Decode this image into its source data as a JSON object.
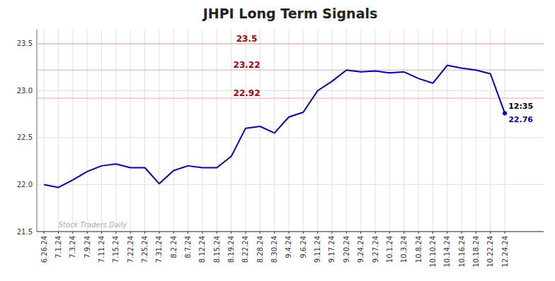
{
  "chart_data": {
    "type": "line",
    "title": "JHPI Long Term Signals",
    "categories": [
      "6.26.24",
      "7.1.24",
      "7.3.24",
      "7.9.24",
      "7.11.24",
      "7.15.24",
      "7.22.24",
      "7.25.24",
      "7.31.24",
      "8.2.24",
      "8.7.24",
      "8.12.24",
      "8.15.24",
      "8.19.24",
      "8.22.24",
      "8.28.24",
      "8.30.24",
      "9.4.24",
      "9.6.24",
      "9.11.24",
      "9.17.24",
      "9.20.24",
      "9.24.24",
      "9.27.24",
      "10.1.24",
      "10.3.24",
      "10.8.24",
      "10.10.24",
      "10.14.24",
      "10.16.24",
      "10.18.24",
      "10.22.24",
      "12.24.24"
    ],
    "values": [
      22.0,
      21.97,
      22.05,
      22.14,
      22.2,
      22.22,
      22.18,
      22.18,
      22.01,
      22.15,
      22.2,
      22.18,
      22.18,
      22.3,
      22.6,
      22.62,
      22.55,
      22.72,
      22.77,
      23.0,
      23.1,
      23.22,
      23.2,
      23.21,
      23.19,
      23.2,
      23.13,
      23.08,
      23.27,
      23.24,
      23.22,
      23.18,
      22.76
    ],
    "color": "#0000cc",
    "hlines": [
      {
        "value": 23.5,
        "label": "23.5",
        "color": "#f5a0a0",
        "label_color": "#aa0000"
      },
      {
        "value": 23.22,
        "label": "23.22",
        "color": "#f5a0a0",
        "label_color": "#aa0000"
      },
      {
        "value": 22.92,
        "label": "22.92",
        "color": "#f5a0a0",
        "label_color": "#aa0000"
      }
    ],
    "last_point": {
      "label": "12:35",
      "value": 22.76
    },
    "watermark": "Stock Traders Daily",
    "ylim": [
      21.5,
      23.65
    ],
    "yticks": [
      21.5,
      {
        "value": 22,
        "label": "22.0"
      },
      22.5,
      {
        "value": 23,
        "label": "23.0"
      },
      23.5
    ],
    "grid": true
  }
}
